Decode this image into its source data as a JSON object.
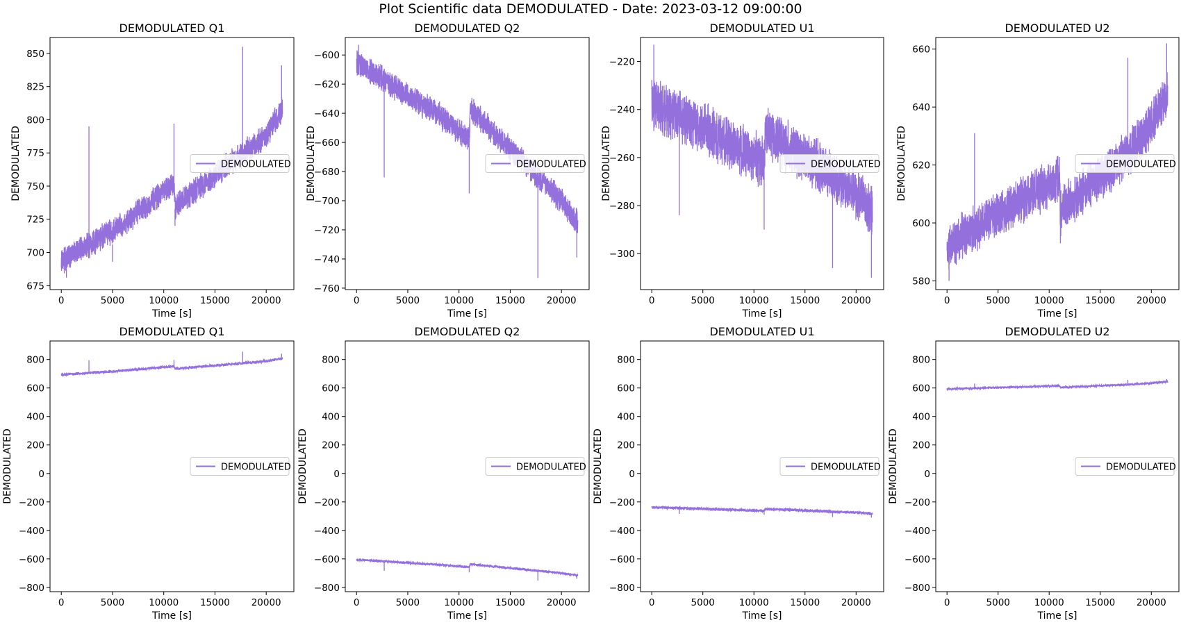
{
  "figure": {
    "suptitle": "Plot Scientific data DEMODULATED - Date: 2023-03-12 09:00:00",
    "line_color": "#9370DB"
  },
  "chart_data": [
    {
      "type": "line",
      "title": "DEMODULATED Q1",
      "xlabel": "Time [s]",
      "ylabel": "DEMODULATED",
      "legend": "DEMODULATED",
      "legend_loc": "center-right",
      "xlim": [
        -1100,
        22700
      ],
      "ylim": [
        672,
        862
      ],
      "xticks": [
        0,
        5000,
        10000,
        15000,
        20000
      ],
      "yticks": [
        675,
        700,
        725,
        750,
        775,
        800,
        825,
        850
      ],
      "series": [
        {
          "name": "DEMODULATED",
          "x_range": [
            0,
            21600
          ],
          "noise_amp": 22,
          "trend": [
            [
              0,
              693
            ],
            [
              2700,
              706
            ],
            [
              5000,
              716
            ],
            [
              8000,
              733
            ],
            [
              11000,
              752
            ],
            [
              11100,
              735
            ],
            [
              14000,
              752
            ],
            [
              17500,
              773
            ],
            [
              20000,
              788
            ],
            [
              21600,
              808
            ]
          ],
          "spikes": [
            [
              2700,
              795,
              702
            ],
            [
              11000,
              797,
              744
            ],
            [
              17700,
              855,
              772
            ],
            [
              21500,
              841,
              816
            ],
            [
              5000,
              693,
              706
            ],
            [
              11100,
              720,
              733
            ],
            [
              500,
              681,
              692
            ]
          ]
        }
      ]
    },
    {
      "type": "line",
      "title": "DEMODULATED Q2",
      "xlabel": "Time [s]",
      "ylabel": "DEMODULATED",
      "legend": "DEMODULATED",
      "legend_loc": "center-right",
      "xlim": [
        -1100,
        22700
      ],
      "ylim": [
        -761,
        -588
      ],
      "xticks": [
        0,
        5000,
        10000,
        15000,
        20000
      ],
      "yticks": [
        -760,
        -740,
        -720,
        -700,
        -680,
        -660,
        -640,
        -620,
        -600
      ],
      "series": [
        {
          "name": "DEMODULATED",
          "x_range": [
            0,
            21600
          ],
          "noise_amp": 20,
          "trend": [
            [
              0,
              -605
            ],
            [
              2700,
              -617
            ],
            [
              5000,
              -628
            ],
            [
              8000,
              -641
            ],
            [
              11000,
              -658
            ],
            [
              11100,
              -637
            ],
            [
              14000,
              -658
            ],
            [
              17500,
              -682
            ],
            [
              20000,
              -700
            ],
            [
              21600,
              -716
            ]
          ],
          "spikes": [
            [
              2700,
              -684,
              -617
            ],
            [
              11000,
              -695,
              -660
            ],
            [
              17700,
              -753,
              -684
            ],
            [
              21500,
              -739,
              -716
            ],
            [
              200,
              -593,
              -604
            ]
          ]
        }
      ]
    },
    {
      "type": "line",
      "title": "DEMODULATED U1",
      "xlabel": "Time [s]",
      "ylabel": "DEMODULATED",
      "legend": "DEMODULATED",
      "legend_loc": "center-right",
      "xlim": [
        -1100,
        22700
      ],
      "ylim": [
        -315,
        -210
      ],
      "xticks": [
        0,
        5000,
        10000,
        15000,
        20000
      ],
      "yticks": [
        -300,
        -280,
        -260,
        -240,
        -220
      ],
      "series": [
        {
          "name": "DEMODULATED",
          "x_range": [
            0,
            21600
          ],
          "noise_amp": 24,
          "trend": [
            [
              0,
              -238
            ],
            [
              2700,
              -243
            ],
            [
              5000,
              -248
            ],
            [
              8000,
              -255
            ],
            [
              11000,
              -262
            ],
            [
              11100,
              -250
            ],
            [
              14000,
              -257
            ],
            [
              17500,
              -267
            ],
            [
              20000,
              -275
            ],
            [
              21600,
              -283
            ]
          ],
          "spikes": [
            [
              2700,
              -284,
              -244
            ],
            [
              200,
              -213,
              -236
            ],
            [
              11000,
              -290,
              -260
            ],
            [
              17700,
              -306,
              -268
            ],
            [
              21500,
              -310,
              -283
            ]
          ]
        }
      ]
    },
    {
      "type": "line",
      "title": "DEMODULATED U2",
      "xlabel": "Time [s]",
      "ylabel": "DEMODULATED",
      "legend": "DEMODULATED",
      "legend_loc": "center-right",
      "xlim": [
        -1100,
        22700
      ],
      "ylim": [
        577,
        664
      ],
      "xticks": [
        0,
        5000,
        10000,
        15000,
        20000
      ],
      "yticks": [
        580,
        600,
        620,
        640,
        660
      ],
      "series": [
        {
          "name": "DEMODULATED",
          "x_range": [
            0,
            21600
          ],
          "noise_amp": 18,
          "trend": [
            [
              0,
              592
            ],
            [
              2700,
              598
            ],
            [
              5000,
              603
            ],
            [
              8000,
              609
            ],
            [
              11000,
              616
            ],
            [
              11100,
              604
            ],
            [
              14000,
              613
            ],
            [
              17500,
              623
            ],
            [
              20000,
              634
            ],
            [
              21600,
              645
            ]
          ],
          "spikes": [
            [
              2700,
              631,
              598
            ],
            [
              17700,
              657,
              625
            ],
            [
              21500,
              662,
              642
            ],
            [
              200,
              580,
              592
            ],
            [
              11100,
              593,
              604
            ]
          ]
        }
      ]
    },
    {
      "type": "line",
      "title": "DEMODULATED Q1",
      "xlabel": "Time [s]",
      "ylabel": "DEMODULATED",
      "legend": "DEMODULATED",
      "legend_loc": "center-right",
      "xlim": [
        -1100,
        22700
      ],
      "ylim": [
        -830,
        930
      ],
      "xticks": [
        0,
        5000,
        10000,
        15000,
        20000
      ],
      "yticks": [
        -800,
        -600,
        -400,
        -200,
        0,
        200,
        400,
        600,
        800
      ],
      "series": [
        {
          "name": "DEMODULATED",
          "x_range": [
            0,
            21600
          ],
          "noise_amp": 22,
          "trend": [
            [
              0,
              693
            ],
            [
              2700,
              706
            ],
            [
              5000,
              716
            ],
            [
              8000,
              733
            ],
            [
              11000,
              752
            ],
            [
              11100,
              735
            ],
            [
              14000,
              752
            ],
            [
              17500,
              773
            ],
            [
              20000,
              788
            ],
            [
              21600,
              808
            ]
          ],
          "spikes": [
            [
              2700,
              795,
              702
            ],
            [
              11000,
              797,
              744
            ],
            [
              17700,
              855,
              772
            ],
            [
              21500,
              841,
              816
            ]
          ]
        }
      ]
    },
    {
      "type": "line",
      "title": "DEMODULATED Q2",
      "xlabel": "Time [s]",
      "ylabel": "DEMODULATED",
      "legend": "DEMODULATED",
      "legend_loc": "center-right",
      "xlim": [
        -1100,
        22700
      ],
      "ylim": [
        -830,
        930
      ],
      "xticks": [
        0,
        5000,
        10000,
        15000,
        20000
      ],
      "yticks": [
        -800,
        -600,
        -400,
        -200,
        0,
        200,
        400,
        600,
        800
      ],
      "series": [
        {
          "name": "DEMODULATED",
          "x_range": [
            0,
            21600
          ],
          "noise_amp": 20,
          "trend": [
            [
              0,
              -605
            ],
            [
              2700,
              -617
            ],
            [
              5000,
              -628
            ],
            [
              8000,
              -641
            ],
            [
              11000,
              -658
            ],
            [
              11100,
              -637
            ],
            [
              14000,
              -658
            ],
            [
              17500,
              -682
            ],
            [
              20000,
              -700
            ],
            [
              21600,
              -716
            ]
          ],
          "spikes": [
            [
              2700,
              -684,
              -617
            ],
            [
              11000,
              -695,
              -660
            ],
            [
              17700,
              -753,
              -684
            ],
            [
              21500,
              -739,
              -716
            ]
          ]
        }
      ]
    },
    {
      "type": "line",
      "title": "DEMODULATED U1",
      "xlabel": "Time [s]",
      "ylabel": "DEMODULATED",
      "legend": "DEMODULATED",
      "legend_loc": "center-right",
      "xlim": [
        -1100,
        22700
      ],
      "ylim": [
        -830,
        930
      ],
      "xticks": [
        0,
        5000,
        10000,
        15000,
        20000
      ],
      "yticks": [
        -800,
        -600,
        -400,
        -200,
        0,
        200,
        400,
        600,
        800
      ],
      "series": [
        {
          "name": "DEMODULATED",
          "x_range": [
            0,
            21600
          ],
          "noise_amp": 24,
          "trend": [
            [
              0,
              -238
            ],
            [
              2700,
              -243
            ],
            [
              5000,
              -248
            ],
            [
              8000,
              -255
            ],
            [
              11000,
              -262
            ],
            [
              11100,
              -250
            ],
            [
              14000,
              -257
            ],
            [
              17500,
              -267
            ],
            [
              20000,
              -275
            ],
            [
              21600,
              -283
            ]
          ],
          "spikes": [
            [
              2700,
              -284,
              -244
            ],
            [
              11000,
              -290,
              -260
            ],
            [
              17700,
              -306,
              -268
            ],
            [
              21500,
              -310,
              -283
            ]
          ]
        }
      ]
    },
    {
      "type": "line",
      "title": "DEMODULATED U2",
      "xlabel": "Time [s]",
      "ylabel": "DEMODULATED",
      "legend": "DEMODULATED",
      "legend_loc": "center-right",
      "xlim": [
        -1100,
        22700
      ],
      "ylim": [
        -830,
        930
      ],
      "xticks": [
        0,
        5000,
        10000,
        15000,
        20000
      ],
      "yticks": [
        -800,
        -600,
        -400,
        -200,
        0,
        200,
        400,
        600,
        800
      ],
      "series": [
        {
          "name": "DEMODULATED",
          "x_range": [
            0,
            21600
          ],
          "noise_amp": 18,
          "trend": [
            [
              0,
              592
            ],
            [
              2700,
              598
            ],
            [
              5000,
              603
            ],
            [
              8000,
              609
            ],
            [
              11000,
              616
            ],
            [
              11100,
              604
            ],
            [
              14000,
              613
            ],
            [
              17500,
              623
            ],
            [
              20000,
              634
            ],
            [
              21600,
              645
            ]
          ],
          "spikes": [
            [
              2700,
              631,
              598
            ],
            [
              17700,
              657,
              625
            ],
            [
              21500,
              662,
              642
            ]
          ]
        }
      ]
    }
  ]
}
